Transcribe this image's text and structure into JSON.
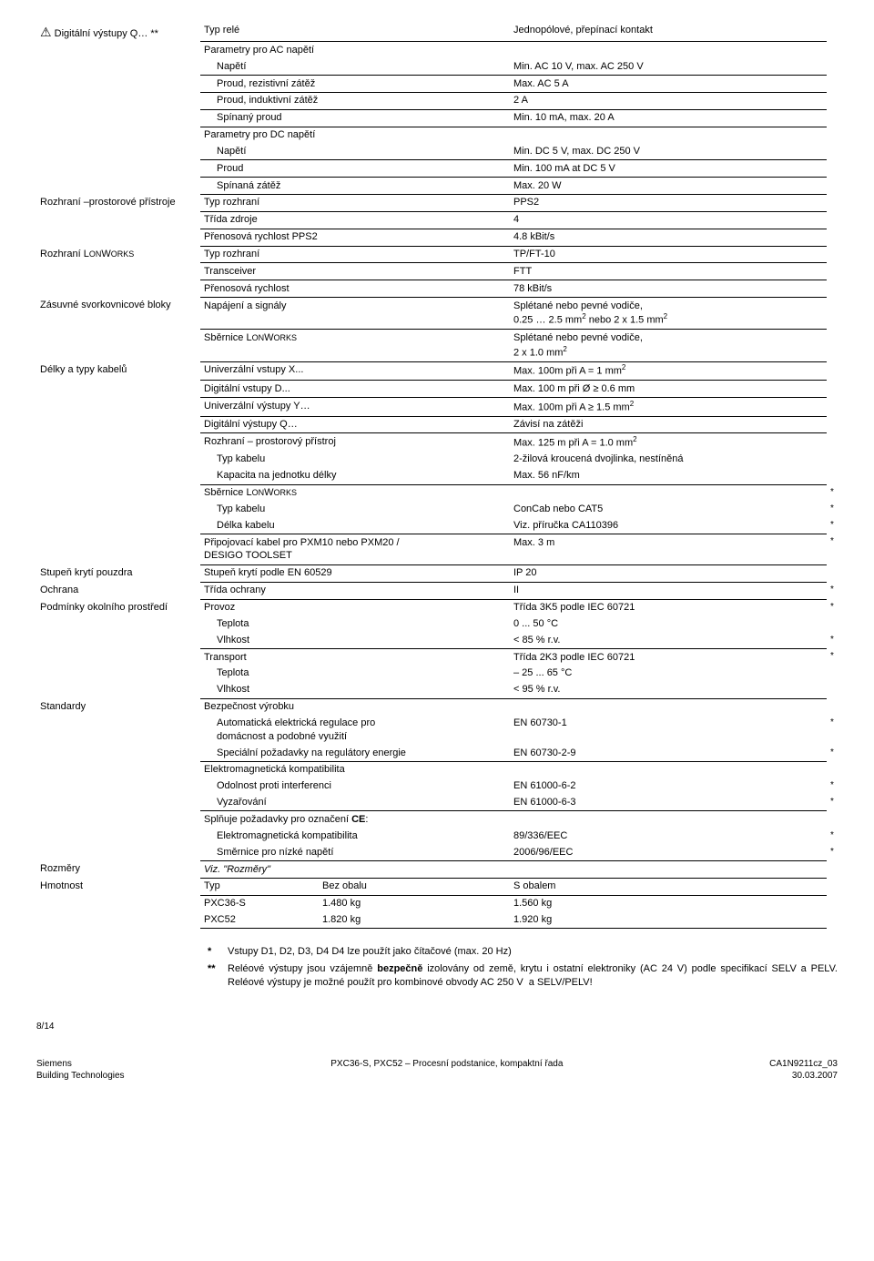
{
  "sections": {
    "digital_outputs": {
      "label": "Digitální výstupy Q… **",
      "rows": [
        {
          "l": "Typ relé",
          "r": "Jednopólové, přepínací kontakt"
        },
        {
          "l": "Parametry pro AC napětí",
          "r": "",
          "no_uline": true
        },
        {
          "l": "Napětí",
          "r": "Min. AC 10 V, max. AC 250 V",
          "indent": 1
        },
        {
          "l": "Proud, rezistivní zátěž",
          "r": "Max. AC 5 A",
          "indent": 1
        },
        {
          "l": "Proud, induktivní zátěž",
          "r": "2 A",
          "indent": 1
        },
        {
          "l": "Spínaný proud",
          "r": "Min. 10 mA, max. 20 A",
          "indent": 1
        },
        {
          "l": "Parametry pro DC napětí",
          "r": "",
          "no_uline": true
        },
        {
          "l": "Napětí",
          "r": "Min. DC 5 V, max. DC 250 V",
          "indent": 1
        },
        {
          "l": "Proud",
          "r": "Min. 100 mA at DC 5 V",
          "indent": 1
        },
        {
          "l": "Spínaná zátěž",
          "r": "Max. 20 W",
          "indent": 1
        }
      ]
    },
    "room_interface": {
      "label": "Rozhraní –prostorové přístroje",
      "rows": [
        {
          "l": "Typ rozhraní",
          "r": "PPS2"
        },
        {
          "l": "Třída zdroje",
          "r": "4"
        },
        {
          "l": "Přenosová rychlost  PPS2",
          "r": "4.8 kBit/s"
        }
      ]
    },
    "lonworks": {
      "label": "Rozhraní LONWORKS",
      "rows": [
        {
          "l": "Typ rozhraní",
          "r": "TP/FT-10"
        },
        {
          "l": "Transceiver",
          "r": "FTT"
        },
        {
          "l": "Přenosová rychlost",
          "r": "78 kBit/s"
        }
      ]
    },
    "terminals": {
      "label": "Zásuvné svorkovnicové bloky",
      "rows": [
        {
          "l": "Napájení a signály",
          "r": "Splétané nebo pevné vodiče,\n  0.25 … 2.5 mm² nebo 2 x 1.5 mm²"
        },
        {
          "l": "Sběrnice LONWORKS",
          "r": "Splétané nebo pevné vodiče,\n  2 x 1.0 mm²"
        }
      ]
    },
    "cables": {
      "label": "Délky a typy kabelů",
      "rows": [
        {
          "l": "Univerzální vstupy X...",
          "r": "Max. 100m při A  = 1 mm²"
        },
        {
          "l": "Digitální vstupy D...",
          "r": "Max. 100 m při Ø ≥ 0.6 mm"
        },
        {
          "l": "Univerzální výstupy Y…",
          "r": "Max. 100m při A ≥ 1.5 mm²"
        },
        {
          "l": "Digitální výstupy Q…",
          "r": "Závisí na zátěži"
        },
        {
          "l": "Rozhraní – prostorový přístroj",
          "r": "Max. 125 m při A = 1.0 mm²",
          "no_uline": true
        },
        {
          "l": "Typ kabelu",
          "r": "2-žilová kroucená dvojlinka, nestíněná",
          "indent": 1,
          "no_uline": true
        },
        {
          "l": "Kapacita na jednotku délky",
          "r": "Max. 56 nF/km",
          "indent": 1
        },
        {
          "l": "Sběrnice LONWORKS",
          "r": "",
          "no_uline": true,
          "star": "*"
        },
        {
          "l": "Typ kabelu",
          "r": "ConCab nebo CAT5",
          "indent": 1,
          "no_uline": true,
          "star": "*"
        },
        {
          "l": "Délka kabelu",
          "r": "Viz. příručka CA110396",
          "indent": 1,
          "star": "*"
        },
        {
          "l": "Připojovací kabel pro PXM10 nebo PXM20 /\n DESIGO TOOLSET",
          "r": "Max. 3 m",
          "star": "*"
        }
      ]
    },
    "housing": {
      "label": "Stupeň krytí pouzdra",
      "rows": [
        {
          "l": "Stupeň krytí podle EN 60529",
          "r": "IP 20"
        }
      ]
    },
    "protection": {
      "label": "Ochrana",
      "rows": [
        {
          "l": "Třída ochrany",
          "r": "II",
          "star": "*"
        }
      ]
    },
    "env": {
      "label": "Podmínky okolního prostředí",
      "rows": [
        {
          "l": "Provoz",
          "r": "Třída 3K5 podle IEC 60721",
          "no_uline": true,
          "star": "*"
        },
        {
          "l": "Teplota",
          "r": "0 ... 50 °C",
          "indent": 1,
          "no_uline": true
        },
        {
          "l": "Vlhkost",
          "r": "< 85 % r.v.",
          "indent": 1,
          "star": "*"
        },
        {
          "l": "Transport",
          "r": "Třída 2K3 podle IEC 60721",
          "no_uline": true,
          "star": "*"
        },
        {
          "l": "Teplota",
          "r": "– 25 ... 65 °C",
          "indent": 1,
          "no_uline": true
        },
        {
          "l": "Vlhkost",
          "r": "< 95 % r.v.",
          "indent": 1
        }
      ]
    },
    "standards": {
      "label": "Standardy",
      "rows": [
        {
          "l": "Bezpečnost výrobku",
          "r": "",
          "no_uline": true
        },
        {
          "l": "Automatická elektrická regulace pro\ndomácnost a podobné využití",
          "r": "EN 60730-1",
          "indent": 1,
          "no_uline": true,
          "star": "*"
        },
        {
          "l": "Speciální požadavky na regulátory energie",
          "r": "EN 60730-2-9",
          "indent": 1,
          "star": "*"
        },
        {
          "l": "Elektromagnetická kompatibilita",
          "r": "",
          "no_uline": true
        },
        {
          "l": "Odolnost proti interferenci",
          "r": "EN 61000-6-2",
          "indent": 1,
          "no_uline": true,
          "star": "*"
        },
        {
          "l": "Vyzařování",
          "r": "EN 61000-6-3",
          "indent": 1,
          "star": "*"
        },
        {
          "l": "Splňuje požadavky pro označení CE:",
          "r": "",
          "no_uline": true
        },
        {
          "l": "Elektromagnetická kompatibilita",
          "r": "89/336/EEC",
          "indent": 1,
          "no_uline": true,
          "star": "*"
        },
        {
          "l": "Směrnice pro nízké napětí",
          "r": "2006/96/EEC",
          "indent": 1,
          "star": "*"
        }
      ]
    },
    "dims": {
      "label": "Rozměry",
      "rows": [
        {
          "l": "Viz. \"Rozměry\"",
          "r": "",
          "italic": true
        }
      ]
    }
  },
  "weight": {
    "label": "Hmotnost",
    "header": {
      "c1": "Typ",
      "c2": "Bez obalu",
      "c3": "S obalem"
    },
    "rows": [
      {
        "c1": "PXC36-S",
        "c2": "1.480 kg",
        "c3": "1.560 kg"
      },
      {
        "c1": "PXC52",
        "c2": "1.820 kg",
        "c3": "1.920 kg"
      }
    ]
  },
  "footnotes": {
    "f1": {
      "mark": "*",
      "text": "Vstupy D1, D2, D3, D4 D4 lze použít jako čítačové (max. 20 Hz)"
    },
    "f2": {
      "mark": "**",
      "text": "Reléové výstupy jsou vzájemně bezpečně izolovány od země, krytu i ostatní elektroniky (AC 24 V) podle specifikací SELV a PELV. Reléové výstupy je možné použít pro kombinové obvody AC 250 V  a SELV/PELV!"
    }
  },
  "footer": {
    "page": "8/14",
    "left1": "Siemens",
    "left2": "Building Technologies",
    "center": "PXC36-S, PXC52 – Procesní podstanice, kompaktní řada",
    "right1": "CA1N9211cz_03",
    "right2": "30.03.2007"
  }
}
